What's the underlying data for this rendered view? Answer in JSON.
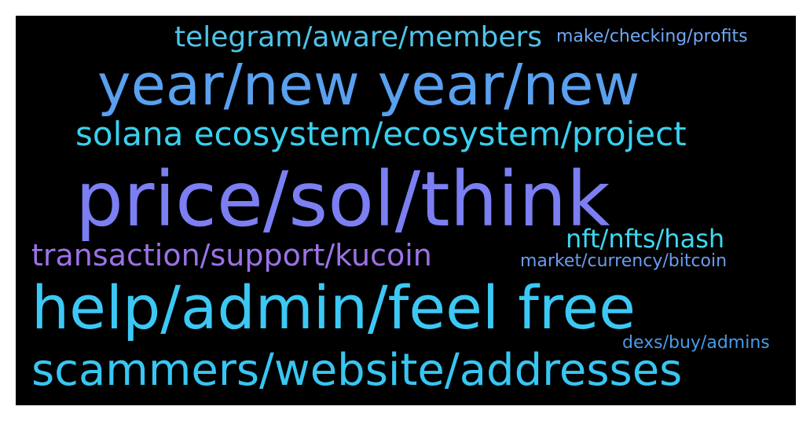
{
  "wordcloud": {
    "background": "#000000",
    "words": [
      {
        "text": "telegram/aware/members",
        "color": "#4fc3e8"
      },
      {
        "text": "make/checking/profits",
        "color": "#6ea8f5"
      },
      {
        "text": "year/new year/new",
        "color": "#5aa0f0"
      },
      {
        "text": "solana ecosystem/ecosystem/project",
        "color": "#3ad0ee"
      },
      {
        "text": "price/sol/think",
        "color": "#7b7ff2"
      },
      {
        "text": "nft/nfts/hash",
        "color": "#3ed8f0"
      },
      {
        "text": "transaction/support/kucoin",
        "color": "#9b72e6"
      },
      {
        "text": "market/currency/bitcoin",
        "color": "#6a9cf0"
      },
      {
        "text": "help/admin/feel free",
        "color": "#3cc8f4"
      },
      {
        "text": "dexs/buy/admins",
        "color": "#4a9ae8"
      },
      {
        "text": "scammers/website/addresses",
        "color": "#38c6f2"
      }
    ]
  }
}
